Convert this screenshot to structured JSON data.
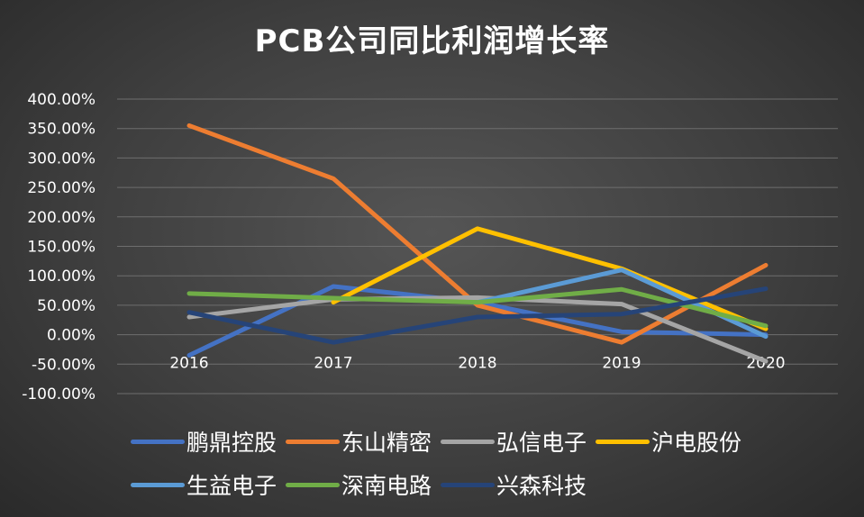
{
  "chart_data": {
    "type": "line",
    "title": "PCB公司同比利润增长率",
    "categories": [
      "2016",
      "2017",
      "2018",
      "2019",
      "2020"
    ],
    "y_tick_labels": [
      "400.00%",
      "350.00%",
      "300.00%",
      "250.00%",
      "200.00%",
      "150.00%",
      "100.00%",
      "50.00%",
      "0.00%",
      "-50.00%",
      "-100.00%"
    ],
    "ylim": [
      -100,
      400
    ],
    "grid": true,
    "legend_position": "bottom",
    "series": [
      {
        "name": "鹏鼎控股",
        "color": "#4472c4",
        "values": [
          -35,
          82,
          55,
          5,
          0
        ]
      },
      {
        "name": "东山精密",
        "color": "#ed7d31",
        "values": [
          355,
          265,
          50,
          -13,
          118
        ]
      },
      {
        "name": "弘信电子",
        "color": "#a5a5a5",
        "values": [
          30,
          60,
          63,
          52,
          -45
        ]
      },
      {
        "name": "沪电股份",
        "color": "#ffc000",
        "values": [
          null,
          55,
          180,
          112,
          10
        ]
      },
      {
        "name": "生益电子",
        "color": "#5b9bd5",
        "values": [
          null,
          null,
          55,
          110,
          -3
        ]
      },
      {
        "name": "深南电路",
        "color": "#70ad47",
        "values": [
          70,
          62,
          55,
          77,
          15
        ]
      },
      {
        "name": "兴森科技",
        "color": "#264478",
        "values": [
          38,
          -13,
          30,
          35,
          78
        ]
      }
    ]
  }
}
